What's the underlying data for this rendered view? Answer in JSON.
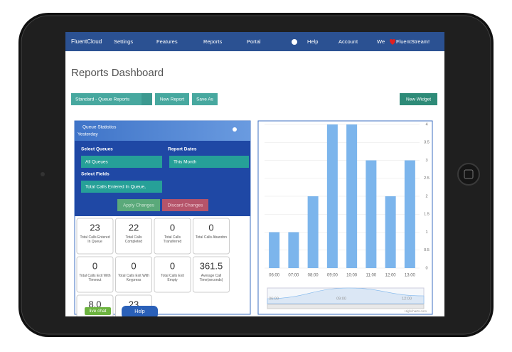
{
  "nav": {
    "brand": "FluentCloud",
    "items": [
      "Settings",
      "Features",
      "Reports",
      "Portal",
      "Help",
      "Account"
    ],
    "tagline_start": "We",
    "tagline_end": "FluentStream!"
  },
  "header": {
    "title": "Reports Dashboard"
  },
  "toolbar": {
    "report_select": "Standard - Queue Reports",
    "buttons": [
      "New Report",
      "Save As"
    ],
    "new_widget": "New Widget"
  },
  "widget": {
    "title": "Queue Statistics",
    "period": "Yesterday",
    "form": {
      "queues_label": "Select Queues",
      "queues_value": "All Queues",
      "dates_label": "Report Dates",
      "dates_value": "This Month",
      "fields_label": "Select Fields",
      "fields_value": "Total Calls Entered In Queue,",
      "apply": "Apply Changes",
      "discard": "Discard Changes"
    },
    "stats": [
      {
        "value": "23",
        "label": "Total Calls Entered In Queue"
      },
      {
        "value": "22",
        "label": "Total Calls Completed"
      },
      {
        "value": "0",
        "label": "Total Calls Transferred"
      },
      {
        "value": "0",
        "label": "Total Calls Abandon"
      },
      {
        "value": "0",
        "label": "Total Calls Exit With Timeout"
      },
      {
        "value": "0",
        "label": "Total Calls Exit With Keypress"
      },
      {
        "value": "0",
        "label": "Total Calls Exit Empty"
      },
      {
        "value": "361.5",
        "label": "Average Call Time(seconds)"
      },
      {
        "value": "8.0"
      },
      {
        "value": "23"
      }
    ]
  },
  "chart_data": {
    "type": "bar",
    "categories": [
      "06:00",
      "07:00",
      "08:00",
      "09:00",
      "10:00",
      "11:00",
      "12:00",
      "13:00"
    ],
    "values": [
      1,
      1,
      2,
      4,
      4,
      3,
      2,
      3
    ],
    "color": "#7cb5ec",
    "ylim": [
      0,
      4
    ],
    "yticks": [
      0,
      0.5,
      1,
      1.5,
      2,
      2.5,
      3,
      3.5,
      4
    ],
    "grid": true,
    "navigator_labels": [
      "06:00",
      "09:00",
      "12:00"
    ],
    "credit": "Highcharts.com"
  },
  "overlays": {
    "live_chat": "live chat",
    "help": "Help"
  }
}
